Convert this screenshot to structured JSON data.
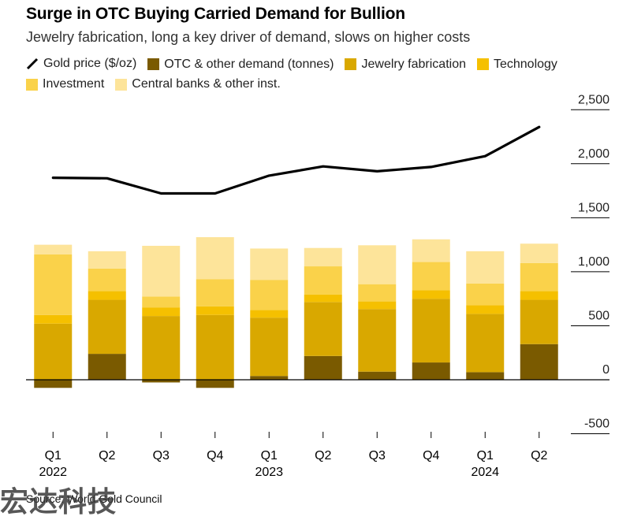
{
  "title": "Surge in OTC Buying Carried Demand for Bullion",
  "subtitle": "Jewelry fabrication, long a key driver of demand, slows on higher costs",
  "source": "Source: World Gold Council",
  "watermark": "宏达科技",
  "colors": {
    "line": "#000000",
    "otc": "#7a5a00",
    "jewelry": "#d9a800",
    "technology": "#f5c000",
    "investment": "#fad24a",
    "central": "#fde49a",
    "axis": "#000000",
    "grid": "#000000"
  },
  "legend": [
    {
      "key": "line",
      "label": "Gold price ($/oz)",
      "icon": "line-icon"
    },
    {
      "key": "otc",
      "label": "OTC & other demand (tonnes)",
      "icon": "swatch"
    },
    {
      "key": "jewelry",
      "label": "Jewelry fabrication",
      "icon": "swatch"
    },
    {
      "key": "technology",
      "label": "Technology",
      "icon": "swatch"
    },
    {
      "key": "investment",
      "label": "Investment",
      "icon": "swatch"
    },
    {
      "key": "central",
      "label": "Central banks & other inst.",
      "icon": "swatch"
    }
  ],
  "chart_data": {
    "type": "bar",
    "stacked": true,
    "categories": [
      "Q1",
      "Q2",
      "Q3",
      "Q4",
      "Q1",
      "Q2",
      "Q3",
      "Q4",
      "Q1",
      "Q2"
    ],
    "year_labels": [
      {
        "label": "2022",
        "index": 0
      },
      {
        "label": "2023",
        "index": 4
      },
      {
        "label": "2024",
        "index": 8
      }
    ],
    "series": [
      {
        "name": "OTC & other demand (tonnes)",
        "key": "otc",
        "values": [
          -75,
          240,
          -25,
          -75,
          35,
          220,
          75,
          160,
          70,
          330
        ]
      },
      {
        "name": "Jewelry fabrication",
        "key": "jewelry",
        "values": [
          520,
          500,
          590,
          600,
          540,
          500,
          580,
          590,
          540,
          410
        ]
      },
      {
        "name": "Technology",
        "key": "technology",
        "values": [
          80,
          80,
          80,
          80,
          70,
          70,
          70,
          80,
          80,
          80
        ]
      },
      {
        "name": "Investment",
        "key": "investment",
        "values": [
          560,
          210,
          100,
          250,
          280,
          260,
          160,
          260,
          200,
          260
        ]
      },
      {
        "name": "Central banks & other inst.",
        "key": "central",
        "values": [
          90,
          160,
          470,
          390,
          290,
          170,
          360,
          210,
          300,
          180
        ]
      }
    ],
    "line_series": {
      "name": "Gold price ($/oz)",
      "key": "line",
      "values": [
        1870,
        1865,
        1725,
        1725,
        1890,
        1975,
        1930,
        1970,
        2070,
        2340
      ]
    },
    "yticks": [
      2500,
      2000,
      1500,
      1000,
      500,
      0,
      -500
    ],
    "ytick_labels": [
      "2,500",
      "2,000",
      "1,500",
      "1,000",
      "500",
      "0",
      "-500"
    ],
    "ylim": [
      -650,
      2550
    ],
    "grid": true,
    "legend_position": "top-left"
  }
}
